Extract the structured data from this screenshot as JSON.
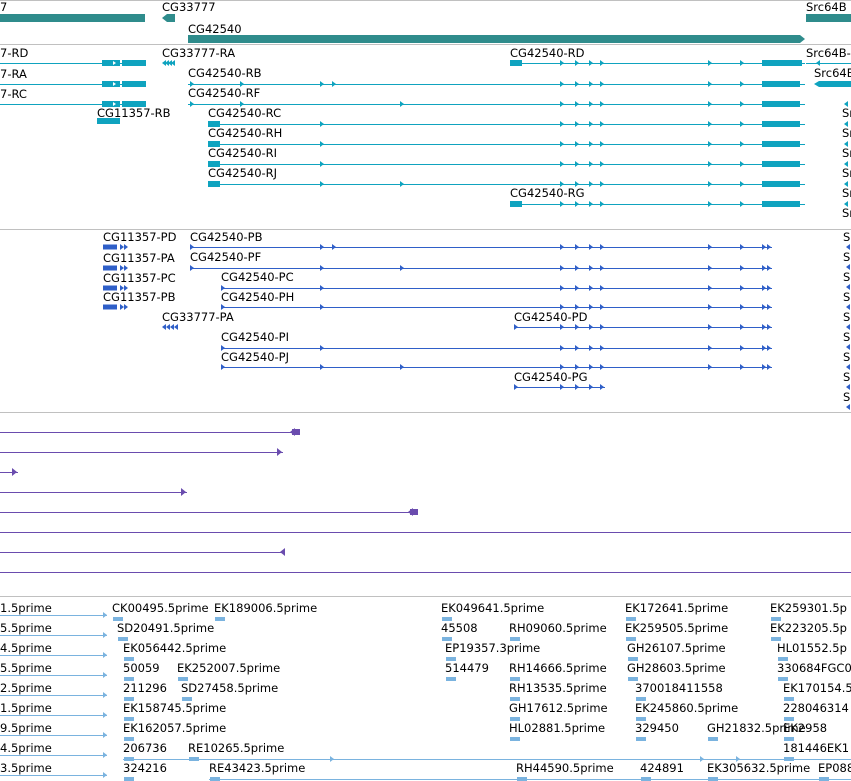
{
  "colors": {
    "gene": "#2f8c8c",
    "transcript": "#0fa3bf",
    "cds": "#2f5fc8",
    "hit": "#6a4cae",
    "est": "#7ab3df",
    "border": "#c0c0c0"
  },
  "track_gene": {
    "labels": [
      {
        "text": "7"
      },
      {
        "text": "CG33777"
      },
      {
        "text": "CG42540"
      },
      {
        "text": "Src64B"
      }
    ]
  },
  "track_transcripts": {
    "labels": [
      "7-RD",
      "7-RA",
      "7-RC",
      "CG11357-RB",
      "CG33777-RA",
      "CG42540-RB",
      "CG42540-RF",
      "CG42540-RC",
      "CG42540-RH",
      "CG42540-RI",
      "CG42540-RJ",
      "CG42540-RD",
      "CG42540-RG",
      "Src64B-",
      "Src64B",
      "Sr",
      "Sr",
      "Sr",
      "Sr",
      "Sr",
      "Sr"
    ]
  },
  "track_cds": {
    "labels": [
      "CG11357-PD",
      "CG11357-PA",
      "CG11357-PC",
      "CG11357-PB",
      "CG33777-PA",
      "CG42540-PB",
      "CG42540-PF",
      "CG42540-PC",
      "CG42540-PH",
      "CG42540-PI",
      "CG42540-PJ",
      "CG42540-PD",
      "CG42540-PG",
      "S",
      "S",
      "S",
      "S",
      "S",
      "S",
      "S",
      "S",
      "S"
    ]
  },
  "track_est": {
    "labels": [
      "1.5prime",
      "5.5prime",
      "4.5prime",
      "5.5prime",
      "2.5prime",
      "1.5prime",
      "9.5prime",
      "4.5prime",
      "3.5prime",
      "CK00495.5prime",
      "EK189006.5prime",
      "SD20491.5prime",
      "EK056442.5prime",
      "50059",
      "EK252007.5prime",
      "211296",
      "SD27458.5prime",
      "EK158745.5prime",
      "EK162057.5prime",
      "206736",
      "RE10265.5prime",
      "324216",
      "RE43423.5prime",
      "EK049641.5prime",
      "45508",
      "RH09060.5prime",
      "EP19357.3prime",
      "514479",
      "RH14666.5prime",
      "RH13535.5prime",
      "GH17612.5prime",
      "HL02881.5prime",
      "RH44590.5prime",
      "EK172641.5prime",
      "EK259505.5prime",
      "GH26107.5prime",
      "GH28603.5prime",
      "370018411558",
      "EK245860.5prime",
      "329450",
      "GH21832.5prime",
      "424891",
      "EK305632.5prime",
      "EK259301.5p",
      "EK223205.5p",
      "HL01552.5p",
      "330684FGC0",
      "EK170154.5",
      "228046314",
      "EK2958",
      "181446EK1",
      "EP088"
    ]
  }
}
